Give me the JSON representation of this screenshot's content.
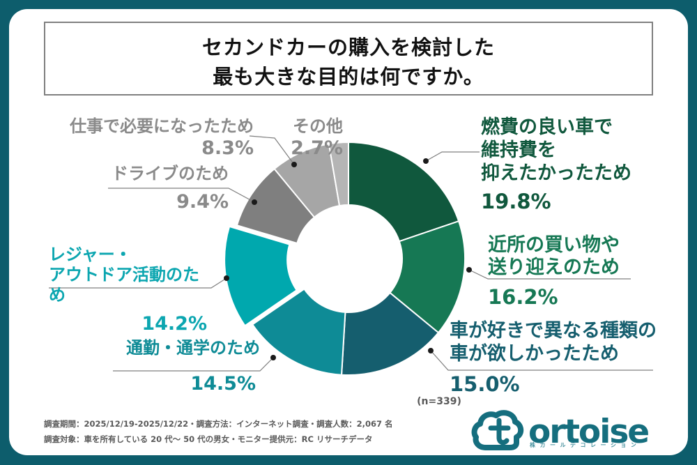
{
  "title": {
    "line1": "セカンドカーの購入を検討した",
    "line2": "最も大きな目的は何ですか。"
  },
  "chart_data": {
    "type": "pie",
    "donut": true,
    "start_angle_deg": 0,
    "clockwise": true,
    "title": "セカンドカーの購入を検討した最も大きな目的は何ですか。",
    "sample_note": "(n=339)",
    "segments": [
      {
        "label": "燃費の良い車で維持費を抑えたかったため",
        "value": 19.8,
        "color": "#10583d",
        "exploded": false
      },
      {
        "label": "近所の買い物や送り迎えのため",
        "value": 16.2,
        "color": "#167854",
        "exploded": false
      },
      {
        "label": "車が好きで異なる種類の車が欲しかったため",
        "value": 15.0,
        "color": "#155e6e",
        "exploded": false
      },
      {
        "label": "通勤・通学のため",
        "value": 14.5,
        "color": "#0e8b96",
        "exploded": false
      },
      {
        "label": "レジャー・アウトドア活動のため",
        "value": 14.2,
        "color": "#00a8ae",
        "exploded": true
      },
      {
        "label": "ドライブのため",
        "value": 9.4,
        "color": "#7f7f7f",
        "exploded": false
      },
      {
        "label": "仕事で必要になったため",
        "value": 8.3,
        "color": "#a6a6a6",
        "exploded": false
      },
      {
        "label": "その他",
        "value": 2.7,
        "color": "#b5b5b5",
        "exploded": false
      }
    ]
  },
  "callouts": {
    "fuel": {
      "lines": [
        "燃費の良い車で",
        "維持費を",
        "抑えたかったため"
      ],
      "pct": "19.8%"
    },
    "errands": {
      "lines": [
        "近所の買い物や",
        "送り迎えのため"
      ],
      "pct": "16.2%"
    },
    "likecars": {
      "lines": [
        "車が好きで異なる種類の",
        "車が欲しかったため"
      ],
      "pct": "15.0%"
    },
    "commute": {
      "lines": [
        "通勤・通学のため"
      ],
      "pct": "14.5%"
    },
    "leisure": {
      "lines": [
        "レジャー・",
        "アウトドア活動のため"
      ],
      "pct": "14.2%"
    },
    "drive": {
      "lines": [
        "ドライブのため"
      ],
      "pct": "9.4%"
    },
    "work": {
      "lines": [
        "仕事で必要になったため"
      ],
      "pct": "8.3%"
    },
    "other": {
      "lines": [
        "その他"
      ],
      "pct": "2.7%"
    }
  },
  "footer": {
    "line1": "調査期間：2025/12/19-2025/12/22・調査方法：インターネット調査・調査人数：2,067 名",
    "line2": "調査対象：車を所有している 20 代〜 50 代の男女・モニター提供元：RC リサーチデータ"
  },
  "logo": {
    "brand_text": "ortoise",
    "brand_subtext": "株カールデコレーション"
  },
  "colors": {
    "frame": "#0d5d6c",
    "panel": "#ffffff",
    "title_border": "#7f7f7f",
    "leader_line": "#7f7f7f",
    "leader_dot": "#1a1a1a",
    "note_text": "#595959",
    "logo_teal": "#156e7e"
  }
}
